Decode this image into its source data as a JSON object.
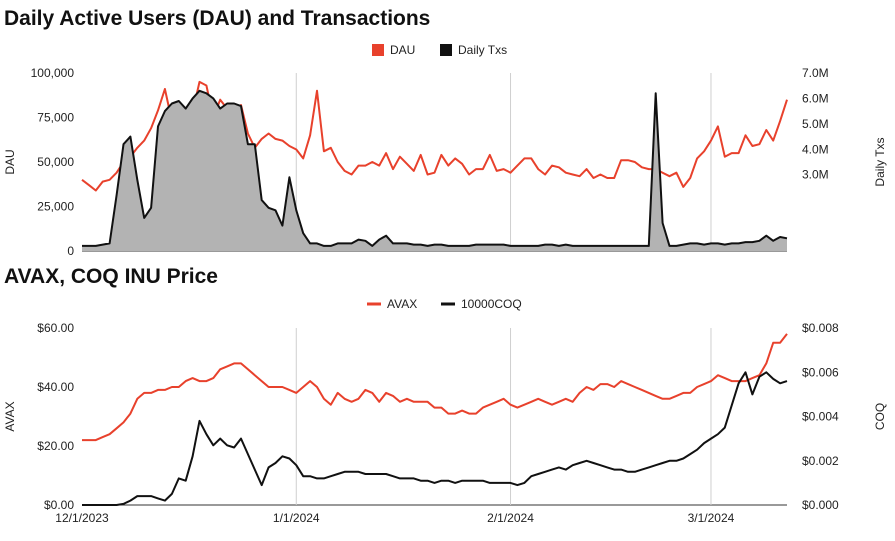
{
  "chart_data": [
    {
      "type": "area",
      "title": "Daily Active Users (DAU) and Transactions",
      "ylabel": "DAU",
      "y2label": "Daily Txs",
      "ylim": [
        0,
        100000
      ],
      "y2lim": [
        0,
        7000000
      ],
      "yticks": [
        "100,000",
        "75,000",
        "50,000",
        "25,000",
        "0"
      ],
      "y2ticks": [
        "7.0M",
        "6.0M",
        "5.0M",
        "4.0M",
        "3.0M"
      ],
      "x_start": "12/1/2023",
      "n_days": 103,
      "legend_position": "top-center",
      "series": [
        {
          "name": "DAU",
          "color": "#e8412c",
          "axis": "left",
          "values": [
            40000,
            37000,
            34000,
            39000,
            40000,
            44000,
            50000,
            53000,
            58000,
            62000,
            69000,
            79000,
            91000,
            73000,
            67000,
            67000,
            78000,
            95000,
            93000,
            75000,
            85000,
            80000,
            79000,
            82000,
            66000,
            58000,
            63000,
            66000,
            63000,
            62000,
            59000,
            57000,
            52000,
            65000,
            90000,
            56000,
            58000,
            50000,
            45000,
            43000,
            48000,
            48000,
            50000,
            48000,
            55000,
            46000,
            53000,
            49000,
            45000,
            54000,
            43000,
            44000,
            54000,
            48000,
            52000,
            49000,
            43000,
            46000,
            46000,
            54000,
            45000,
            46000,
            44000,
            48000,
            52000,
            52000,
            46000,
            43000,
            48000,
            47000,
            44000,
            43000,
            42000,
            46000,
            41000,
            43000,
            41000,
            41000,
            51000,
            51000,
            50000,
            47000,
            46000,
            46000,
            44000,
            42000,
            44000,
            36000,
            41000,
            52000,
            56000,
            62000,
            70000,
            53000,
            55000,
            55000,
            65000,
            59000,
            60000,
            68000,
            62000,
            73000,
            85000
          ]
        },
        {
          "name": "Daily Txs",
          "color": "#111111",
          "fill": "#b3b3b3",
          "axis": "right",
          "values": [
            200000,
            200000,
            200000,
            250000,
            300000,
            2200000,
            4200000,
            4500000,
            2800000,
            1300000,
            1700000,
            4900000,
            5500000,
            5800000,
            5900000,
            5600000,
            6000000,
            6300000,
            6200000,
            6000000,
            5600000,
            5800000,
            5800000,
            5700000,
            4200000,
            4200000,
            2000000,
            1700000,
            1600000,
            1000000,
            2900000,
            1600000,
            700000,
            300000,
            300000,
            200000,
            200000,
            300000,
            300000,
            300000,
            450000,
            400000,
            200000,
            450000,
            600000,
            300000,
            300000,
            300000,
            250000,
            250000,
            200000,
            250000,
            250000,
            200000,
            200000,
            200000,
            200000,
            250000,
            250000,
            250000,
            250000,
            250000,
            200000,
            200000,
            200000,
            200000,
            200000,
            250000,
            250000,
            200000,
            250000,
            200000,
            200000,
            200000,
            200000,
            200000,
            200000,
            200000,
            200000,
            200000,
            200000,
            200000,
            200000,
            6200000,
            1100000,
            200000,
            200000,
            250000,
            300000,
            300000,
            250000,
            300000,
            300000,
            250000,
            300000,
            300000,
            350000,
            350000,
            400000,
            600000,
            400000,
            550000,
            500000
          ]
        }
      ]
    },
    {
      "type": "line",
      "title": "AVAX, COQ INU Price",
      "ylabel": "AVAX",
      "y2label": "COQ",
      "ylim": [
        0,
        60
      ],
      "y2lim": [
        0,
        0.008
      ],
      "yticks": [
        "$60.00",
        "$40.00",
        "$20.00",
        "$0.00"
      ],
      "y2ticks": [
        "$0.008",
        "$0.006",
        "$0.004",
        "$0.002",
        "$0.000"
      ],
      "xticks": [
        "12/1/2023",
        "1/1/2024",
        "2/1/2024",
        "3/1/2024"
      ],
      "x_start": "12/1/2023",
      "n_days": 103,
      "legend_position": "top-center",
      "series": [
        {
          "name": "AVAX",
          "color": "#e8412c",
          "axis": "left",
          "values": [
            22,
            22,
            22,
            23,
            24,
            26,
            28,
            31,
            36,
            38,
            38,
            39,
            39,
            40,
            40,
            42,
            43,
            42,
            42,
            43,
            46,
            47,
            48,
            48,
            46,
            44,
            42,
            40,
            40,
            40,
            39,
            38,
            40,
            42,
            40,
            36,
            34,
            38,
            36,
            35,
            36,
            39,
            38,
            35,
            38,
            37,
            35,
            36,
            35,
            35,
            35,
            33,
            33,
            31,
            31,
            32,
            31,
            31,
            33,
            34,
            35,
            36,
            34,
            33,
            34,
            35,
            36,
            35,
            34,
            35,
            36,
            35,
            38,
            40,
            39,
            41,
            41,
            40,
            42,
            41,
            40,
            39,
            38,
            37,
            36,
            36,
            37,
            38,
            38,
            40,
            41,
            42,
            44,
            43,
            42,
            42,
            42,
            43,
            44,
            48,
            55,
            55,
            58
          ]
        },
        {
          "name": "10000COQ",
          "color": "#111111",
          "axis": "right",
          "values": [
            0,
            0,
            0,
            0,
            0,
            0,
            5e-05,
            0.0002,
            0.0004,
            0.0004,
            0.0004,
            0.0003,
            0.0002,
            0.0005,
            0.0012,
            0.0011,
            0.0022,
            0.0038,
            0.0032,
            0.0027,
            0.003,
            0.0027,
            0.0026,
            0.003,
            0.0023,
            0.0016,
            0.0009,
            0.0017,
            0.0019,
            0.0022,
            0.0021,
            0.0018,
            0.0013,
            0.0013,
            0.0012,
            0.0012,
            0.0013,
            0.0014,
            0.0015,
            0.0015,
            0.0015,
            0.0014,
            0.0014,
            0.0014,
            0.0014,
            0.0013,
            0.0012,
            0.0012,
            0.0012,
            0.0011,
            0.0011,
            0.001,
            0.0011,
            0.0011,
            0.001,
            0.0011,
            0.0011,
            0.0011,
            0.0011,
            0.001,
            0.001,
            0.001,
            0.001,
            0.0009,
            0.001,
            0.0013,
            0.0014,
            0.0015,
            0.0016,
            0.0017,
            0.0016,
            0.0018,
            0.0019,
            0.002,
            0.0019,
            0.0018,
            0.0017,
            0.0016,
            0.0016,
            0.0015,
            0.0015,
            0.0016,
            0.0017,
            0.0018,
            0.0019,
            0.002,
            0.002,
            0.0021,
            0.0023,
            0.0025,
            0.0028,
            0.003,
            0.0032,
            0.0035,
            0.0045,
            0.0055,
            0.006,
            0.005,
            0.0058,
            0.006,
            0.0057,
            0.0055,
            0.0056
          ]
        }
      ]
    }
  ]
}
